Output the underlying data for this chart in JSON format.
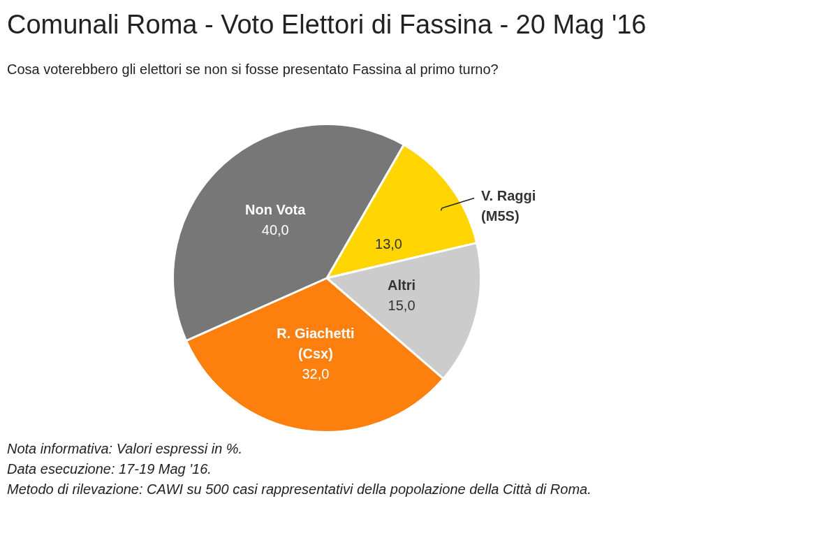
{
  "chart_data": {
    "type": "pie",
    "title": "Comunali Roma - Voto Elettori di Fassina - 20 Mag '16",
    "subtitle": "Cosa voterebbero gli elettori se non si fosse presentato Fassina al primo turno?",
    "categories": [
      "V. Raggi (M5S)",
      "Altri",
      "R. Giachetti (Csx)",
      "Non Vota"
    ],
    "values": [
      13,
      15,
      32,
      40
    ],
    "colors": [
      "#ffd500",
      "#cccccc",
      "#fd7f0e",
      "#777777"
    ],
    "value_labels": [
      "13,0",
      "15,0",
      "32,0",
      "40,0"
    ],
    "legend": false,
    "annotations": [
      "Nota informativa: Valori espressi in %.",
      "Data esecuzione: 17-19 Mag '16.",
      "Metodo di rilevazione: CAWI su 500 casi rappresentativi della popolazione della Città di Roma."
    ]
  }
}
